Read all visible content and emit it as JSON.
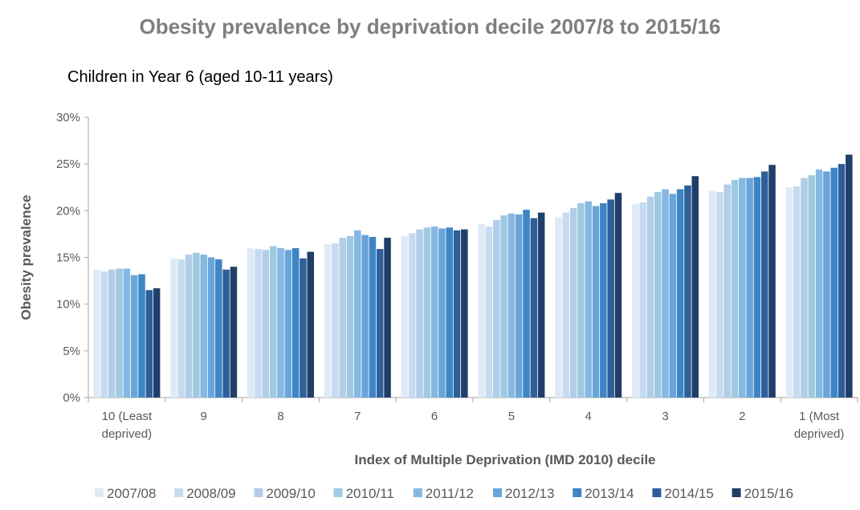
{
  "chart_data": {
    "type": "bar",
    "title": "Obesity prevalence by deprivation decile 2007/8 to 2015/16",
    "subtitle": "Children in Year 6 (aged 10-11 years)",
    "xlabel": "Index of Multiple Deprivation (IMD 2010) decile",
    "ylabel": "Obesity prevalence",
    "ylim": [
      0,
      30
    ],
    "y_ticks": [
      "0%",
      "5%",
      "10%",
      "15%",
      "20%",
      "25%",
      "30%"
    ],
    "grid": false,
    "legend_position": "bottom",
    "categories": [
      [
        "10 (Least",
        "deprived)"
      ],
      [
        "9"
      ],
      [
        "8"
      ],
      [
        "7"
      ],
      [
        "6"
      ],
      [
        "5"
      ],
      [
        "4"
      ],
      [
        "3"
      ],
      [
        "2"
      ],
      [
        "1  (Most",
        "deprived)"
      ]
    ],
    "series": [
      {
        "name": "2007/08",
        "color": "#deebf7",
        "values": [
          13.7,
          14.9,
          16.0,
          16.4,
          17.3,
          18.6,
          19.3,
          20.7,
          22.1,
          22.5
        ]
      },
      {
        "name": "2008/09",
        "color": "#c6dbef",
        "values": [
          13.5,
          14.8,
          15.9,
          16.5,
          17.6,
          18.3,
          19.8,
          20.9,
          22.0,
          22.6
        ]
      },
      {
        "name": "2009/10",
        "color": "#b3cde8",
        "values": [
          13.7,
          15.3,
          15.8,
          17.1,
          18.0,
          19.0,
          20.3,
          21.5,
          22.8,
          23.5
        ]
      },
      {
        "name": "2010/11",
        "color": "#9ecae1",
        "values": [
          13.8,
          15.5,
          16.2,
          17.3,
          18.2,
          19.5,
          20.8,
          22.0,
          23.3,
          23.8
        ]
      },
      {
        "name": "2011/12",
        "color": "#85b8e2",
        "values": [
          13.8,
          15.3,
          16.0,
          17.9,
          18.3,
          19.7,
          21.0,
          22.3,
          23.5,
          24.4
        ]
      },
      {
        "name": "2012/13",
        "color": "#6aa5d9",
        "values": [
          13.1,
          15.0,
          15.8,
          17.4,
          18.1,
          19.6,
          20.5,
          21.8,
          23.5,
          24.2
        ]
      },
      {
        "name": "2013/14",
        "color": "#3d85c6",
        "values": [
          13.2,
          14.8,
          16.0,
          17.2,
          18.2,
          20.1,
          20.8,
          22.3,
          23.6,
          24.6
        ]
      },
      {
        "name": "2014/15",
        "color": "#2e5f9a",
        "values": [
          11.5,
          13.7,
          14.9,
          15.9,
          17.9,
          19.2,
          21.2,
          22.7,
          24.2,
          25.0
        ]
      },
      {
        "name": "2015/16",
        "color": "#1f3f69",
        "values": [
          11.7,
          14.0,
          15.6,
          17.1,
          18.0,
          19.8,
          21.9,
          23.7,
          24.9,
          26.0
        ]
      }
    ]
  }
}
